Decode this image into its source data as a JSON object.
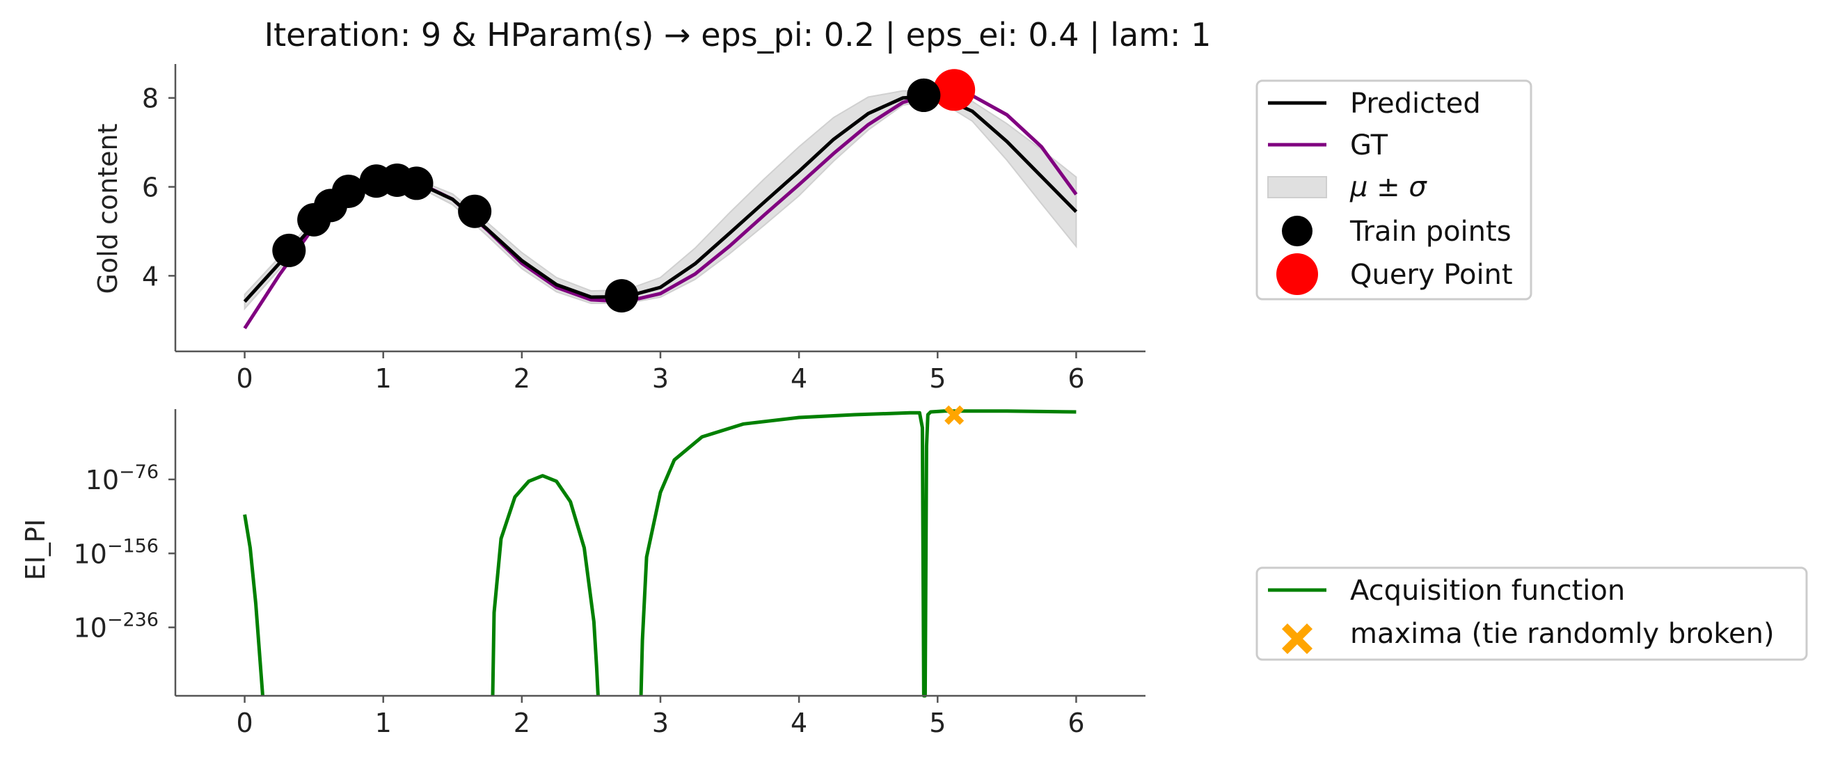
{
  "chart_data": [
    {
      "type": "line",
      "title": "Iteration: 9 & HParam(s) → eps_pi: 0.2 | eps_ei: 0.4 | lam: 1",
      "xlabel": "",
      "ylabel": "Gold content",
      "xlim": [
        -0.5,
        6.5
      ],
      "ylim": [
        2.3,
        8.7
      ],
      "xticks": [
        "0",
        "1",
        "2",
        "3",
        "4",
        "5",
        "6"
      ],
      "yticks": [
        "4",
        "6",
        "8"
      ],
      "grid": false,
      "legend_position": "outside-right",
      "x": [
        0.0,
        0.25,
        0.5,
        0.75,
        1.0,
        1.25,
        1.5,
        1.75,
        2.0,
        2.25,
        2.5,
        2.75,
        3.0,
        3.25,
        3.5,
        3.75,
        4.0,
        4.25,
        4.5,
        4.75,
        5.0,
        5.25,
        5.5,
        5.75,
        6.0
      ],
      "series": [
        {
          "name": "Predicted",
          "color": "#000000",
          "values": [
            3.42,
            4.28,
            5.15,
            5.8,
            6.1,
            6.08,
            5.72,
            5.05,
            4.34,
            3.8,
            3.52,
            3.53,
            3.74,
            4.27,
            4.96,
            5.66,
            6.35,
            7.07,
            7.65,
            8.0,
            8.05,
            7.7,
            7.02,
            6.23,
            5.44
          ]
        },
        {
          "name": "GT",
          "color": "#800080",
          "values": [
            2.82,
            4.02,
            5.1,
            5.82,
            6.14,
            6.1,
            5.72,
            5.03,
            4.28,
            3.74,
            3.46,
            3.42,
            3.6,
            4.04,
            4.67,
            5.37,
            6.05,
            6.75,
            7.4,
            7.9,
            8.12,
            8.05,
            7.62,
            6.9,
            5.83
          ]
        }
      ],
      "band": {
        "name": "μ ± σ",
        "color": "#e0e0e0",
        "upper": [
          3.58,
          4.42,
          5.26,
          5.86,
          6.16,
          6.16,
          5.84,
          5.2,
          4.52,
          3.96,
          3.66,
          3.68,
          3.96,
          4.62,
          5.42,
          6.18,
          6.9,
          7.56,
          8.02,
          8.16,
          8.14,
          7.92,
          7.42,
          6.84,
          6.22
        ],
        "lower": [
          3.26,
          4.14,
          5.04,
          5.74,
          6.04,
          6.0,
          5.6,
          4.9,
          4.16,
          3.64,
          3.38,
          3.38,
          3.52,
          3.92,
          4.5,
          5.14,
          5.8,
          6.58,
          7.28,
          7.84,
          7.96,
          7.48,
          6.6,
          5.62,
          4.66
        ]
      },
      "train_points": {
        "name": "Train points",
        "color": "#000000",
        "x": [
          0.32,
          0.5,
          0.62,
          0.75,
          0.95,
          1.1,
          1.24,
          1.66,
          2.72,
          4.9
        ],
        "y": [
          4.57,
          5.26,
          5.58,
          5.9,
          6.13,
          6.15,
          6.08,
          5.45,
          3.55,
          8.06
        ]
      },
      "query_point": {
        "name": "Query Point",
        "color": "#ff0000",
        "x": 5.12,
        "y": 8.18
      }
    },
    {
      "type": "line",
      "title": "",
      "xlabel": "",
      "ylabel": "EI_PI",
      "yscale": "log",
      "y_unit_note": "values given as log10 exponents",
      "xlim": [
        -0.5,
        6.5
      ],
      "ylim_exponent": [
        -310,
        0
      ],
      "xticks": [
        "0",
        "1",
        "2",
        "3",
        "4",
        "5",
        "6"
      ],
      "yticks": [
        {
          "base": "10",
          "exp": "−76",
          "value": -76
        },
        {
          "base": "10",
          "exp": "−156",
          "value": -156
        },
        {
          "base": "10",
          "exp": "−236",
          "value": -236
        }
      ],
      "grid": false,
      "legend_position": "outside-right",
      "series": [
        {
          "name": "Acquisition function",
          "color": "#008000",
          "segments": [
            {
              "x": [
                0.0,
                0.04,
                0.08,
                0.11,
                0.13
              ],
              "y": [
                -114,
                -150,
                -210,
                -270,
                -310
              ]
            },
            {
              "x": [
                1.79,
                1.8,
                1.85,
                1.95,
                2.05,
                2.15,
                2.25,
                2.35,
                2.45,
                2.52,
                2.54,
                2.55
              ],
              "y": [
                -310,
                -220,
                -140,
                -95,
                -78,
                -72,
                -78,
                -100,
                -150,
                -230,
                -280,
                -310
              ]
            },
            {
              "x": [
                2.86,
                2.87,
                2.9,
                3.0,
                3.1,
                3.3,
                3.6,
                4.0,
                4.4,
                4.8,
                4.87,
                4.89,
                4.9,
                4.91,
                4.92,
                4.93,
                4.95,
                5.05,
                5.5,
                6.0
              ],
              "y": [
                -310,
                -250,
                -160,
                -90,
                -55,
                -30,
                -16,
                -9,
                -6,
                -4,
                -4,
                -20,
                -310,
                -310,
                -40,
                -6,
                -3,
                -2,
                -2,
                -3
              ]
            }
          ]
        }
      ],
      "maxima": {
        "name": "maxima (tie randomly broken)",
        "color": "#ffa500",
        "x": 5.12,
        "y": -2
      }
    }
  ]
}
